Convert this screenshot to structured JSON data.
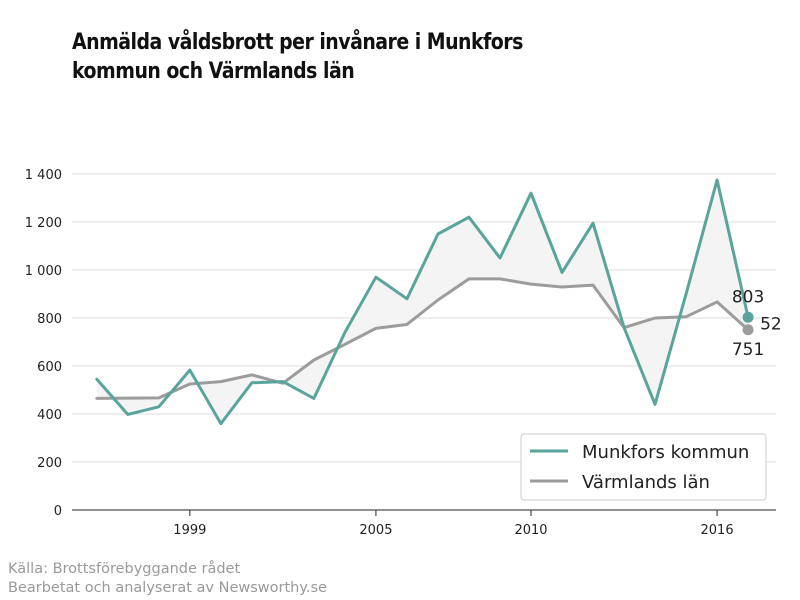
{
  "title_line1": "Anmälda våldsbrott per invånare i Munkfors",
  "title_line2": "kommun och Värmlands län",
  "source_line1": "Källa: Brottsförebyggande rådet",
  "source_line2": "Bearbetat och analyserat av Newsworthy.se",
  "colors": {
    "munkfors": "#5aa59b",
    "varmland": "#9c9c9c",
    "fill": "#f4f4f4",
    "grid": "#dddddd"
  },
  "chart_data": {
    "type": "line",
    "title": "Anmälda våldsbrott per invånare i Munkfors kommun och Värmlands län",
    "x": [
      1996,
      1997,
      1998,
      1999,
      2000,
      2001,
      2002,
      2003,
      2004,
      2005,
      2006,
      2007,
      2008,
      2009,
      2010,
      2011,
      2012,
      2013,
      2014,
      2015,
      2016,
      2017
    ],
    "xlim": [
      1995.2,
      2017.9
    ],
    "xticks": [
      1999,
      2005,
      2010,
      2016
    ],
    "xtick_labels": [
      "1999",
      "2005",
      "2010",
      "2016"
    ],
    "ylim": [
      0,
      1400
    ],
    "yticks": [
      0,
      200,
      400,
      600,
      800,
      1000,
      1200,
      1400
    ],
    "ytick_labels": [
      "0",
      "200",
      "400",
      "600",
      "800",
      "1 000",
      "1 200",
      "1 400"
    ],
    "grid": true,
    "legend_position": "bottom-right",
    "series": [
      {
        "name": "Munkfors kommun",
        "values": [
          545,
          398,
          430,
          583,
          360,
          530,
          535,
          465,
          740,
          970,
          880,
          1150,
          1220,
          1050,
          1320,
          990,
          1195,
          760,
          440,
          900,
          1375,
          803
        ]
      },
      {
        "name": "Värmlands län",
        "values": [
          465,
          466,
          467,
          525,
          535,
          563,
          528,
          625,
          690,
          757,
          773,
          875,
          963,
          963,
          941,
          929,
          937,
          760,
          800,
          805,
          867,
          751
        ]
      }
    ],
    "annotations": [
      {
        "text": "803",
        "series": 0
      },
      {
        "text": "52",
        "kind": "difference"
      },
      {
        "text": "751",
        "series": 1
      }
    ]
  }
}
